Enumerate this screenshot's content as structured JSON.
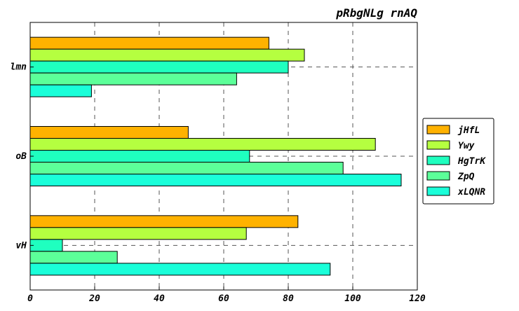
{
  "chart_data": {
    "type": "bar",
    "orientation": "horizontal",
    "title": "pRbgNLg rnAQ",
    "xlabel": "",
    "ylabel": "",
    "xlim": [
      0,
      120
    ],
    "xticks": [
      0,
      20,
      40,
      60,
      80,
      100,
      120
    ],
    "grid": true,
    "legend_position": "right",
    "categories": [
      "lmn",
      "oB",
      "vH"
    ],
    "series": [
      {
        "name": "jHfL",
        "color": "#ffb200",
        "values": [
          74,
          49,
          83
        ]
      },
      {
        "name": "Ywy",
        "color": "#b5ff40",
        "values": [
          85,
          107,
          67
        ]
      },
      {
        "name": "HgTrK",
        "color": "#1fffbf",
        "values": [
          80,
          68,
          10
        ]
      },
      {
        "name": "ZpQ",
        "color": "#5cff99",
        "values": [
          64,
          97,
          27
        ]
      },
      {
        "name": "xLQNR",
        "color": "#1affd9",
        "values": [
          19,
          115,
          93
        ]
      }
    ]
  }
}
